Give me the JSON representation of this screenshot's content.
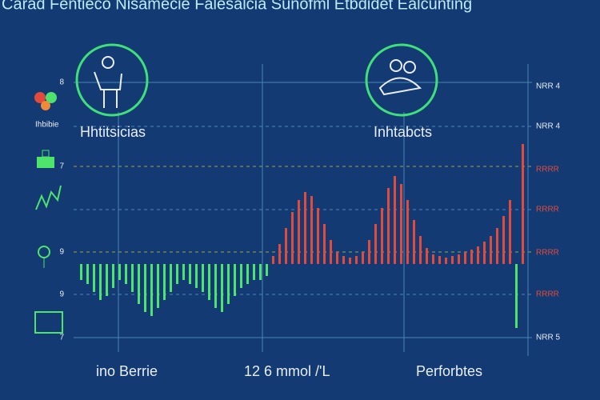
{
  "title": "Carad Fentieco Nisamecie Falesalcia Sunofml Etbdidet Ealcunting",
  "left_labels": [
    "8",
    "7",
    "9",
    "9",
    "7"
  ],
  "icon_label": "Ihbibie",
  "right_labels": [
    "NRR 4",
    "NRR 4",
    "RRRR",
    "RRRR",
    "RRRR",
    "RRRR",
    "NRR 5"
  ],
  "captions": {
    "left": "Hhtitsicias",
    "right": "Inhtabcts"
  },
  "footer": [
    "ino Berrie",
    "12 6 mmol /'L",
    "Perforbtes"
  ],
  "waveform": {
    "positive_color": "#e24b3b",
    "negative_color": "#4ee36c",
    "values": [
      -20,
      -25,
      -35,
      -45,
      -40,
      -30,
      -20,
      -25,
      -35,
      -50,
      -60,
      -65,
      -55,
      -45,
      -35,
      -25,
      -20,
      -25,
      -30,
      -35,
      -45,
      -55,
      -60,
      -50,
      -40,
      -30,
      -25,
      -20,
      -20,
      -15,
      10,
      25,
      45,
      65,
      80,
      90,
      85,
      70,
      50,
      30,
      15,
      10,
      8,
      10,
      15,
      30,
      50,
      70,
      95,
      110,
      100,
      80,
      55,
      35,
      20,
      12,
      10,
      8,
      10,
      12,
      15,
      18,
      22,
      28,
      35,
      45,
      60,
      80,
      -80,
      150
    ]
  }
}
